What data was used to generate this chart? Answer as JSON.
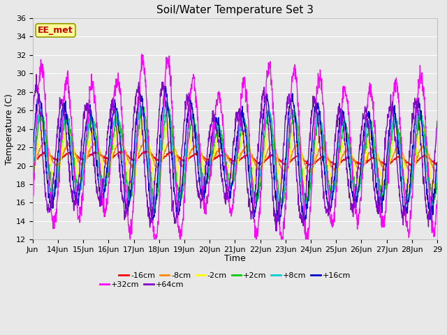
{
  "title": "Soil/Water Temperature Set 3",
  "xlabel": "Time",
  "ylabel": "Temperature (C)",
  "ylim": [
    12,
    36
  ],
  "yticks": [
    12,
    14,
    16,
    18,
    20,
    22,
    24,
    26,
    28,
    30,
    32,
    34,
    36
  ],
  "bg_color": "#e8e8e8",
  "annotation_text": "EE_met",
  "annotation_color": "#cc0000",
  "annotation_bg": "#ffff99",
  "annotation_border": "#999900",
  "series": [
    {
      "label": "-16cm",
      "color": "#ff0000"
    },
    {
      "label": "-8cm",
      "color": "#ff8800"
    },
    {
      "label": "-2cm",
      "color": "#ffff00"
    },
    {
      "label": "+2cm",
      "color": "#00cc00"
    },
    {
      "label": "+8cm",
      "color": "#00cccc"
    },
    {
      "label": "+16cm",
      "color": "#0000cc"
    },
    {
      "label": "+32cm",
      "color": "#ff00ff"
    },
    {
      "label": "+64cm",
      "color": "#8800cc"
    }
  ],
  "legend_row1": [
    "-16cm",
    "-8cm",
    "-2cm",
    "+2cm",
    "+8cm",
    "+16cm"
  ],
  "legend_row2": [
    "+32cm",
    "+64cm"
  ],
  "xtick_labels": [
    "Jun",
    "14Jun",
    "15Jun",
    "16Jun",
    "17Jun",
    "18Jun",
    "19Jun",
    "20Jun",
    "21Jun",
    "22Jun",
    "23Jun",
    "24Jun",
    "25Jun",
    "26Jun",
    "27Jun",
    "28Jun",
    "29"
  ],
  "grid_color": "#ffffff",
  "linewidth": 1.0
}
